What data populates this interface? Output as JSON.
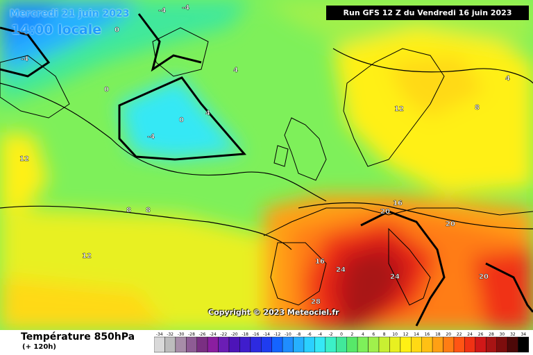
{
  "header": {
    "date_line": "Mercredi 21 juin 2023",
    "time_line": "14:00 locale",
    "run_info": "Run GFS 12 Z du Vendredi 16 juin 2023"
  },
  "map": {
    "copyright": "Copyright © 2023 Meteociel.fr",
    "isotherm_labels": [
      {
        "id": "iso-a",
        "text": "-4"
      },
      {
        "id": "iso-b",
        "text": "-4"
      },
      {
        "id": "iso-c",
        "text": "-4"
      },
      {
        "id": "iso-d",
        "text": "0"
      },
      {
        "id": "iso-e",
        "text": "0"
      },
      {
        "id": "iso-f",
        "text": "4"
      },
      {
        "id": "iso-g",
        "text": "4"
      },
      {
        "id": "iso-h",
        "text": "8"
      },
      {
        "id": "iso-i",
        "text": "8"
      },
      {
        "id": "iso-j",
        "text": "12"
      },
      {
        "id": "iso-k",
        "text": "12"
      },
      {
        "id": "iso-l",
        "text": "12"
      },
      {
        "id": "iso-m",
        "text": "16"
      },
      {
        "id": "iso-n",
        "text": "16"
      },
      {
        "id": "iso-o",
        "text": "20"
      },
      {
        "id": "iso-p",
        "text": "20"
      },
      {
        "id": "iso-q",
        "text": "24"
      },
      {
        "id": "iso-r",
        "text": "24"
      },
      {
        "id": "iso-s",
        "text": "28"
      },
      {
        "id": "iso-t",
        "text": "20"
      },
      {
        "id": "iso-u",
        "text": "-4"
      },
      {
        "id": "iso-v",
        "text": "0"
      },
      {
        "id": "iso-w",
        "text": "4"
      },
      {
        "id": "iso-x",
        "text": "8"
      }
    ]
  },
  "legend": {
    "title": "Température 850hPa",
    "subtitle": "(+ 120h)",
    "unit_colors": {
      "cold": "#1565ff",
      "mild": "#7ef05a",
      "warm": "#ffe000",
      "hot": "#d01818"
    },
    "scale": [
      {
        "label": "-34",
        "color": "#d9d9d9"
      },
      {
        "label": "-32",
        "color": "#bdbdbd"
      },
      {
        "label": "-30",
        "color": "#a78da8"
      },
      {
        "label": "-28",
        "color": "#8e5c94"
      },
      {
        "label": "-26",
        "color": "#7a2f82"
      },
      {
        "label": "-24",
        "color": "#8b1ea0"
      },
      {
        "label": "-22",
        "color": "#6b1db5"
      },
      {
        "label": "-20",
        "color": "#4d14b8"
      },
      {
        "label": "-18",
        "color": "#3f1dcc"
      },
      {
        "label": "-16",
        "color": "#2d2ae0"
      },
      {
        "label": "-14",
        "color": "#1f3cf0"
      },
      {
        "label": "-12",
        "color": "#1464ff"
      },
      {
        "label": "-10",
        "color": "#1f8dff"
      },
      {
        "label": "-8",
        "color": "#26b0ff"
      },
      {
        "label": "-6",
        "color": "#2bd0ff"
      },
      {
        "label": "-4",
        "color": "#36e8f5"
      },
      {
        "label": "-2",
        "color": "#3cf0c8"
      },
      {
        "label": "0",
        "color": "#41e89b"
      },
      {
        "label": "2",
        "color": "#57e869"
      },
      {
        "label": "4",
        "color": "#7ef05a"
      },
      {
        "label": "6",
        "color": "#a0f04c"
      },
      {
        "label": "8",
        "color": "#c8f032"
      },
      {
        "label": "10",
        "color": "#e8f020"
      },
      {
        "label": "12",
        "color": "#fff014"
      },
      {
        "label": "14",
        "color": "#ffd914"
      },
      {
        "label": "16",
        "color": "#ffc014"
      },
      {
        "label": "18",
        "color": "#ffa014"
      },
      {
        "label": "20",
        "color": "#ff7d14"
      },
      {
        "label": "22",
        "color": "#ff5514"
      },
      {
        "label": "24",
        "color": "#f03214"
      },
      {
        "label": "26",
        "color": "#d01818"
      },
      {
        "label": "28",
        "color": "#a81414"
      },
      {
        "label": "30",
        "color": "#7d0d0d"
      },
      {
        "label": "32",
        "color": "#4d0808"
      },
      {
        "label": "34",
        "color": "#000000"
      }
    ]
  }
}
